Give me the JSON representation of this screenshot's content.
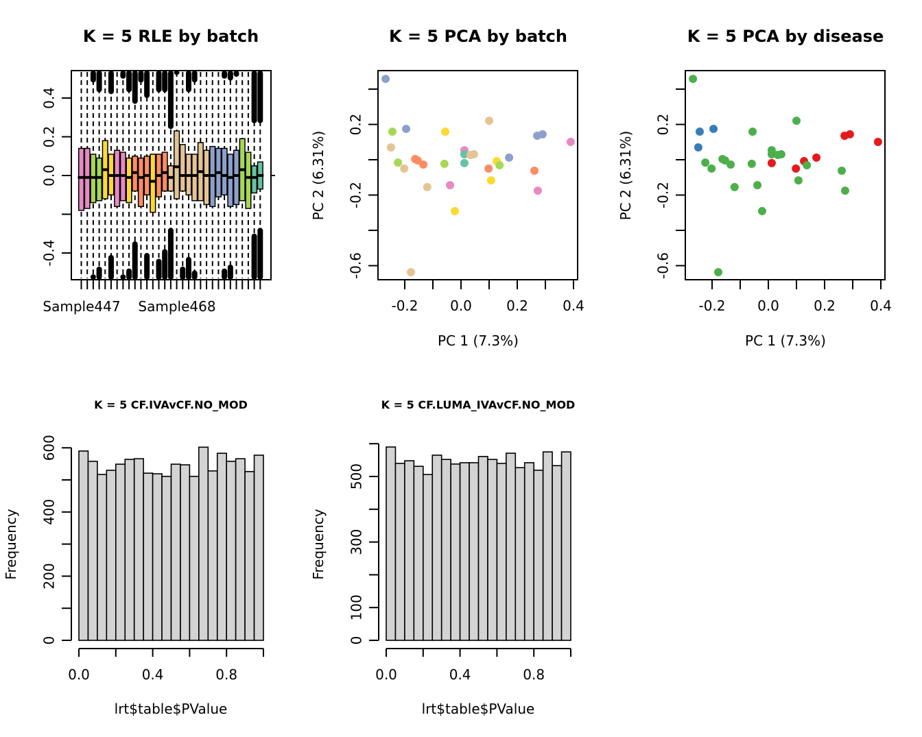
{
  "chart_data": [
    {
      "type": "box",
      "title": "K = 5 RLE by batch",
      "xlabel": "",
      "ylabel": "",
      "ylim": [
        -0.54,
        0.54
      ],
      "yticks": [
        -0.4,
        -0.2,
        0.0,
        0.2,
        0.4
      ],
      "ytick_labels": [
        "-0.4",
        "",
        "0.0",
        "0.2",
        "0.4"
      ],
      "xtick_labels": [
        "Sample447",
        "Sample468"
      ],
      "n_boxes": 31,
      "reference_line": 0,
      "batch_colors": {
        "pink": "#E78AC3",
        "green": "#A6D854",
        "yellow": "#FFD92F",
        "orange": "#FC8D62",
        "tan": "#E5C494",
        "blue": "#8DA0CB",
        "teal": "#66C2A5"
      },
      "boxes": [
        {
          "batch": "pink",
          "q1": -0.18,
          "median": -0.01,
          "q3": 0.14,
          "out_top": null,
          "out_bottom": null
        },
        {
          "batch": "pink",
          "q1": -0.17,
          "median": -0.01,
          "q3": 0.14,
          "out_top": null,
          "out_bottom": null
        },
        {
          "batch": "green",
          "q1": -0.14,
          "median": -0.01,
          "q3": 0.11,
          "out_top": 0.48,
          "out_bottom": -0.51
        },
        {
          "batch": "green",
          "q1": -0.13,
          "median": -0.01,
          "q3": 0.09,
          "out_top": 0.43,
          "out_bottom": -0.47
        },
        {
          "batch": "yellow",
          "q1": -0.12,
          "median": 0.03,
          "q3": 0.18,
          "out_top": null,
          "out_bottom": null
        },
        {
          "batch": "yellow",
          "q1": -0.1,
          "median": 0.0,
          "q3": 0.11,
          "out_top": 0.42,
          "out_bottom": -0.41
        },
        {
          "batch": "pink",
          "q1": -0.16,
          "median": 0.0,
          "q3": 0.13,
          "out_top": null,
          "out_bottom": null
        },
        {
          "batch": "pink",
          "q1": -0.13,
          "median": 0.0,
          "q3": 0.12,
          "out_top": 0.5,
          "out_bottom": -0.51
        },
        {
          "batch": "yellow",
          "q1": -0.14,
          "median": -0.01,
          "q3": 0.09,
          "out_top": 0.43,
          "out_bottom": -0.48
        },
        {
          "batch": "orange",
          "q1": -0.08,
          "median": 0.015,
          "q3": 0.1,
          "out_top": 0.37,
          "out_bottom": -0.34
        },
        {
          "batch": "orange",
          "q1": -0.16,
          "median": -0.01,
          "q3": 0.09,
          "out_top": 0.48,
          "out_bottom": null
        },
        {
          "batch": "orange",
          "q1": -0.1,
          "median": 0.0,
          "q3": 0.1,
          "out_top": 0.4,
          "out_bottom": -0.4
        },
        {
          "batch": "yellow",
          "q1": -0.19,
          "median": -0.03,
          "q3": 0.11,
          "out_top": null,
          "out_bottom": null
        },
        {
          "batch": "orange",
          "q1": -0.11,
          "median": 0.0,
          "q3": 0.11,
          "out_top": 0.43,
          "out_bottom": -0.43
        },
        {
          "batch": "orange",
          "q1": -0.08,
          "median": 0.015,
          "q3": 0.12,
          "out_top": 0.43,
          "out_bottom": -0.38
        },
        {
          "batch": "tan",
          "q1": -0.08,
          "median": -0.01,
          "q3": 0.05,
          "out_top": 0.24,
          "out_bottom": -0.27
        },
        {
          "batch": "tan",
          "q1": -0.12,
          "median": 0.045,
          "q3": 0.23,
          "out_top": 0.52,
          "out_bottom": null
        },
        {
          "batch": "tan",
          "q1": -0.08,
          "median": 0.0,
          "q3": 0.16,
          "out_top": null,
          "out_bottom": -0.47
        },
        {
          "batch": "tan",
          "q1": -0.1,
          "median": 0.0,
          "q3": 0.11,
          "out_top": 0.43,
          "out_bottom": -0.42
        },
        {
          "batch": "tan",
          "q1": -0.13,
          "median": 0.0,
          "q3": 0.11,
          "out_top": 0.48,
          "out_bottom": -0.49
        },
        {
          "batch": "tan",
          "q1": -0.13,
          "median": 0.02,
          "q3": 0.17,
          "out_top": null,
          "out_bottom": null
        },
        {
          "batch": "tan",
          "q1": -0.15,
          "median": 0.0,
          "q3": 0.13,
          "out_top": null,
          "out_bottom": null
        },
        {
          "batch": "blue",
          "q1": -0.16,
          "median": 0.0,
          "q3": 0.15,
          "out_top": null,
          "out_bottom": null
        },
        {
          "batch": "blue",
          "q1": -0.11,
          "median": 0.015,
          "q3": 0.14,
          "out_top": null,
          "out_bottom": null
        },
        {
          "batch": "blue",
          "q1": -0.1,
          "median": 0.0,
          "q3": 0.14,
          "out_top": 0.5,
          "out_bottom": -0.48
        },
        {
          "batch": "blue",
          "q1": -0.16,
          "median": -0.01,
          "q3": 0.11,
          "out_top": 0.49,
          "out_bottom": -0.46
        },
        {
          "batch": "blue",
          "q1": -0.15,
          "median": 0.0,
          "q3": 0.13,
          "out_top": 0.51,
          "out_bottom": null
        },
        {
          "batch": "green",
          "q1": -0.13,
          "median": 0.03,
          "q3": 0.19,
          "out_top": null,
          "out_bottom": null
        },
        {
          "batch": "green",
          "q1": -0.17,
          "median": -0.01,
          "q3": 0.12,
          "out_top": null,
          "out_bottom": null
        },
        {
          "batch": "teal",
          "q1": -0.09,
          "median": -0.01,
          "q3": 0.05,
          "out_top": 0.27,
          "out_bottom": -0.3
        },
        {
          "batch": "teal",
          "q1": -0.07,
          "median": 0.0,
          "q3": 0.07,
          "out_top": 0.27,
          "out_bottom": -0.27
        }
      ]
    },
    {
      "type": "scatter",
      "title": "K = 5 PCA by batch",
      "xlabel": "PC 1 (7.3%)",
      "ylabel": "PC 2 (6.31%)",
      "xlim": [
        -0.295,
        0.415
      ],
      "ylim": [
        -0.675,
        0.505
      ],
      "xticks": [
        -0.2,
        -0.1,
        0.0,
        0.1,
        0.2,
        0.3,
        0.4
      ],
      "xtick_labels": [
        "-0.2",
        "",
        "0.0",
        "",
        "0.2",
        "",
        "0.4"
      ],
      "yticks": [
        -0.6,
        -0.4,
        -0.2,
        0.0,
        0.2,
        0.4
      ],
      "ytick_labels": [
        "-0.6",
        "",
        "-0.2",
        "",
        "0.2",
        ""
      ],
      "color_key": "batch"
    },
    {
      "type": "scatter",
      "title": "K = 5 PCA by disease",
      "xlabel": "PC 1 (7.3%)",
      "ylabel": "PC 2 (6.31%)",
      "xlim": [
        -0.295,
        0.415
      ],
      "ylim": [
        -0.675,
        0.505
      ],
      "xticks": [
        -0.2,
        -0.1,
        0.0,
        0.1,
        0.2,
        0.3,
        0.4
      ],
      "xtick_labels": [
        "-0.2",
        "",
        "0.0",
        "",
        "0.2",
        "",
        "0.4"
      ],
      "yticks": [
        -0.6,
        -0.4,
        -0.2,
        0.0,
        0.2,
        0.4
      ],
      "ytick_labels": [
        "-0.6",
        "",
        "-0.2",
        "",
        "0.2",
        ""
      ],
      "color_key": "disease",
      "disease_colors": {
        "red": "#E41A1C",
        "blue": "#377EB8",
        "green": "#4DAF4A"
      }
    },
    {
      "type": "bar",
      "subtype": "histogram",
      "title": "K = 5 CF.IVAvCF.NO_MOD",
      "xlabel": "lrt$table$PValue",
      "ylabel": "Frequency",
      "xlim": [
        0,
        1
      ],
      "ylim": [
        0,
        600
      ],
      "xticks": [
        0.0,
        0.2,
        0.4,
        0.6,
        0.8,
        1.0
      ],
      "xtick_labels": [
        "0.0",
        "",
        "0.4",
        "",
        "0.8",
        ""
      ],
      "yticks": [
        0,
        100,
        200,
        300,
        400,
        500,
        600
      ],
      "ytick_labels": [
        "0",
        "",
        "200",
        "",
        "400",
        "",
        "600"
      ],
      "bin_width": 0.05,
      "values": [
        590,
        558,
        517,
        530,
        549,
        564,
        566,
        521,
        519,
        511,
        549,
        547,
        511,
        602,
        528,
        583,
        558,
        566,
        526,
        577
      ]
    },
    {
      "type": "bar",
      "subtype": "histogram",
      "title": "K = 5 CF.LUMA_IVAvCF.NO_MOD",
      "xlabel": "lrt$table$PValue",
      "ylabel": "Frequency",
      "xlim": [
        0,
        1
      ],
      "ylim": [
        0,
        600
      ],
      "xticks": [
        0.0,
        0.2,
        0.4,
        0.6,
        0.8,
        1.0
      ],
      "xtick_labels": [
        "0.0",
        "",
        "0.4",
        "",
        "0.8",
        ""
      ],
      "yticks": [
        0,
        100,
        200,
        300,
        400,
        500,
        600
      ],
      "ytick_labels": [
        "0",
        "100",
        "",
        "300",
        "",
        "500",
        ""
      ],
      "bin_width": 0.05,
      "values": [
        590,
        540,
        548,
        531,
        506,
        565,
        552,
        538,
        542,
        542,
        561,
        552,
        540,
        571,
        527,
        542,
        519,
        575,
        533,
        575
      ]
    }
  ],
  "pca_points": [
    {
      "pc1": -0.268,
      "pc2": 0.458,
      "batch": "blue",
      "disease": "green"
    },
    {
      "pc1": -0.244,
      "pc2": 0.159,
      "batch": "green",
      "disease": "blue"
    },
    {
      "pc1": -0.195,
      "pc2": 0.175,
      "batch": "blue",
      "disease": "blue"
    },
    {
      "pc1": -0.249,
      "pc2": 0.07,
      "batch": "tan",
      "disease": "blue"
    },
    {
      "pc1": -0.224,
      "pc2": -0.016,
      "batch": "green",
      "disease": "green"
    },
    {
      "pc1": -0.202,
      "pc2": -0.05,
      "batch": "tan",
      "disease": "green"
    },
    {
      "pc1": -0.163,
      "pc2": 0.004,
      "batch": "orange",
      "disease": "green"
    },
    {
      "pc1": -0.154,
      "pc2": -0.004,
      "batch": "orange",
      "disease": "green"
    },
    {
      "pc1": -0.134,
      "pc2": -0.027,
      "batch": "orange",
      "disease": "green"
    },
    {
      "pc1": -0.12,
      "pc2": -0.155,
      "batch": "tan",
      "disease": "green"
    },
    {
      "pc1": -0.056,
      "pc2": 0.159,
      "batch": "yellow",
      "disease": "green"
    },
    {
      "pc1": -0.059,
      "pc2": -0.023,
      "batch": "green",
      "disease": "green"
    },
    {
      "pc1": -0.039,
      "pc2": -0.144,
      "batch": "pink",
      "disease": "green"
    },
    {
      "pc1": -0.022,
      "pc2": -0.291,
      "batch": "yellow",
      "disease": "green"
    },
    {
      "pc1": 0.012,
      "pc2": 0.054,
      "batch": "pink",
      "disease": "green"
    },
    {
      "pc1": 0.012,
      "pc2": 0.031,
      "batch": "teal",
      "disease": "green"
    },
    {
      "pc1": 0.034,
      "pc2": 0.027,
      "batch": "tan",
      "disease": "green"
    },
    {
      "pc1": 0.046,
      "pc2": 0.031,
      "batch": "tan",
      "disease": "green"
    },
    {
      "pc1": 0.012,
      "pc2": -0.019,
      "batch": "teal",
      "disease": "red"
    },
    {
      "pc1": 0.1,
      "pc2": 0.221,
      "batch": "tan",
      "disease": "green"
    },
    {
      "pc1": 0.098,
      "pc2": -0.05,
      "batch": "orange",
      "disease": "red"
    },
    {
      "pc1": 0.127,
      "pc2": -0.008,
      "batch": "yellow",
      "disease": "red"
    },
    {
      "pc1": 0.137,
      "pc2": -0.031,
      "batch": "green",
      "disease": "green"
    },
    {
      "pc1": 0.171,
      "pc2": 0.012,
      "batch": "blue",
      "disease": "red"
    },
    {
      "pc1": 0.107,
      "pc2": -0.117,
      "batch": "yellow",
      "disease": "green"
    },
    {
      "pc1": 0.271,
      "pc2": 0.136,
      "batch": "blue",
      "disease": "red"
    },
    {
      "pc1": 0.29,
      "pc2": 0.144,
      "batch": "blue",
      "disease": "red"
    },
    {
      "pc1": 0.39,
      "pc2": 0.101,
      "batch": "pink",
      "disease": "red"
    },
    {
      "pc1": 0.261,
      "pc2": -0.062,
      "batch": "orange",
      "disease": "green"
    },
    {
      "pc1": 0.273,
      "pc2": -0.175,
      "batch": "pink",
      "disease": "green"
    },
    {
      "pc1": -0.178,
      "pc2": -0.637,
      "batch": "tan",
      "disease": "green"
    }
  ]
}
